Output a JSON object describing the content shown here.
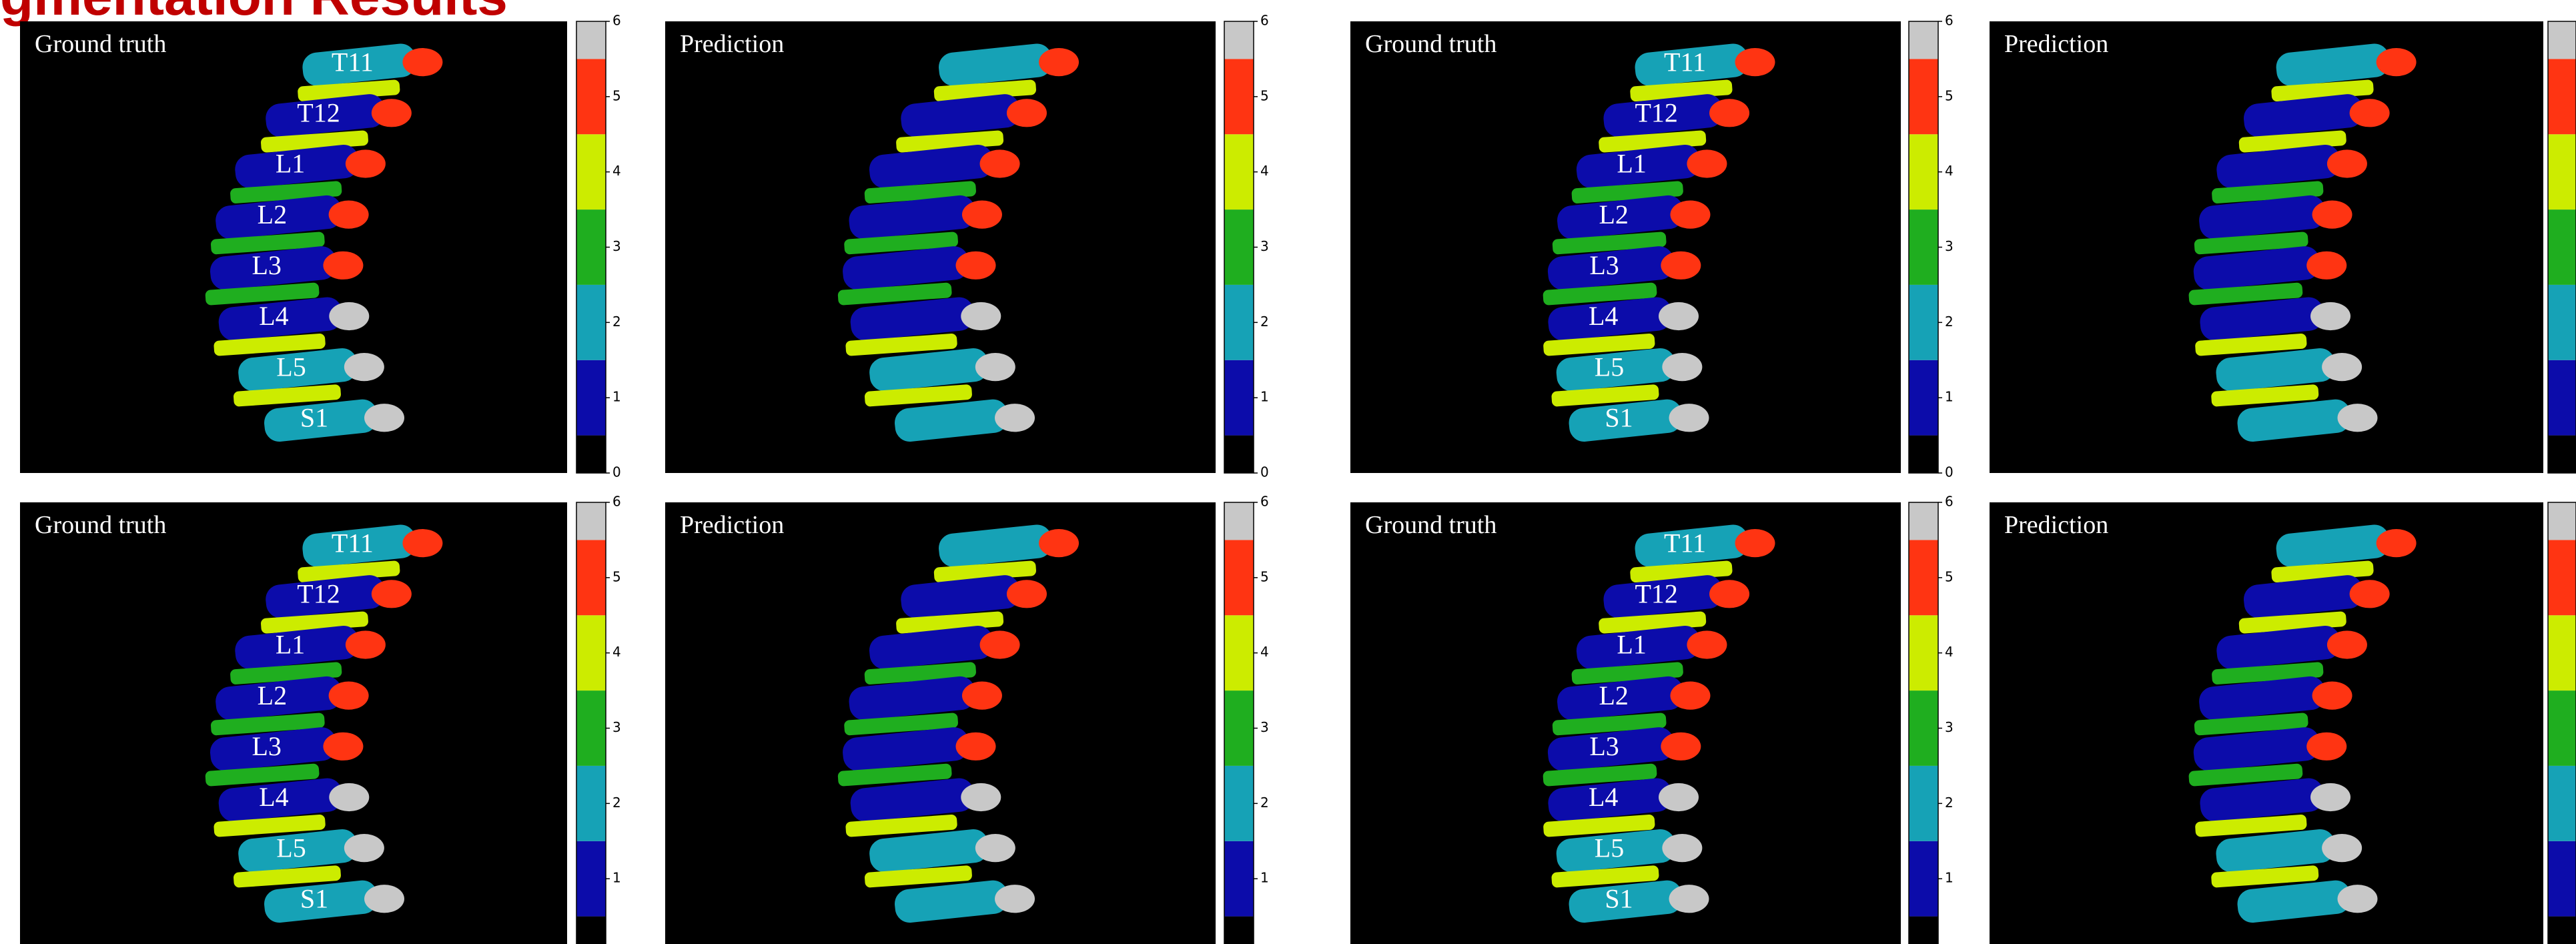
{
  "title": "gmentation Results",
  "colorbar": {
    "colors": [
      "#000000",
      "#0c0caa",
      "#16a2b6",
      "#1fae1f",
      "#ccec00",
      "#ff3412",
      "#c8c8c8"
    ]
  },
  "panels": [
    {
      "label": "Ground truth",
      "vertebra_labels": [
        "T11",
        "T12",
        "L1",
        "L2",
        "L3",
        "L4",
        "L5",
        "S1"
      ],
      "colorbar_ticks": [
        0,
        1,
        2,
        3,
        4,
        5,
        6
      ]
    },
    {
      "label": "Prediction",
      "colorbar_ticks": [
        0,
        1,
        2,
        3,
        4,
        5,
        6
      ]
    },
    {
      "label": "Ground truth",
      "vertebra_labels": [
        "T11",
        "T12",
        "L1",
        "L2",
        "L3",
        "L4",
        "L5",
        "S1"
      ],
      "colorbar_ticks": [
        0,
        1,
        2,
        3,
        4,
        5,
        6
      ]
    },
    {
      "label": "Prediction"
    },
    {
      "label": "Ground truth",
      "vertebra_labels": [
        "T11",
        "T12",
        "L1",
        "L2",
        "L3",
        "L4",
        "L5",
        "S1"
      ],
      "colorbar_ticks": [
        1,
        2,
        3,
        4,
        5,
        6
      ]
    },
    {
      "label": "Prediction",
      "colorbar_ticks": [
        1,
        2,
        3,
        4,
        5,
        6
      ]
    },
    {
      "label": "Ground truth",
      "vertebra_labels": [
        "T11",
        "T12",
        "L1",
        "L2",
        "L3",
        "L4",
        "L5",
        "S1"
      ],
      "colorbar_ticks": [
        1,
        2,
        3,
        4,
        5,
        6
      ]
    },
    {
      "label": "Prediction"
    }
  ]
}
